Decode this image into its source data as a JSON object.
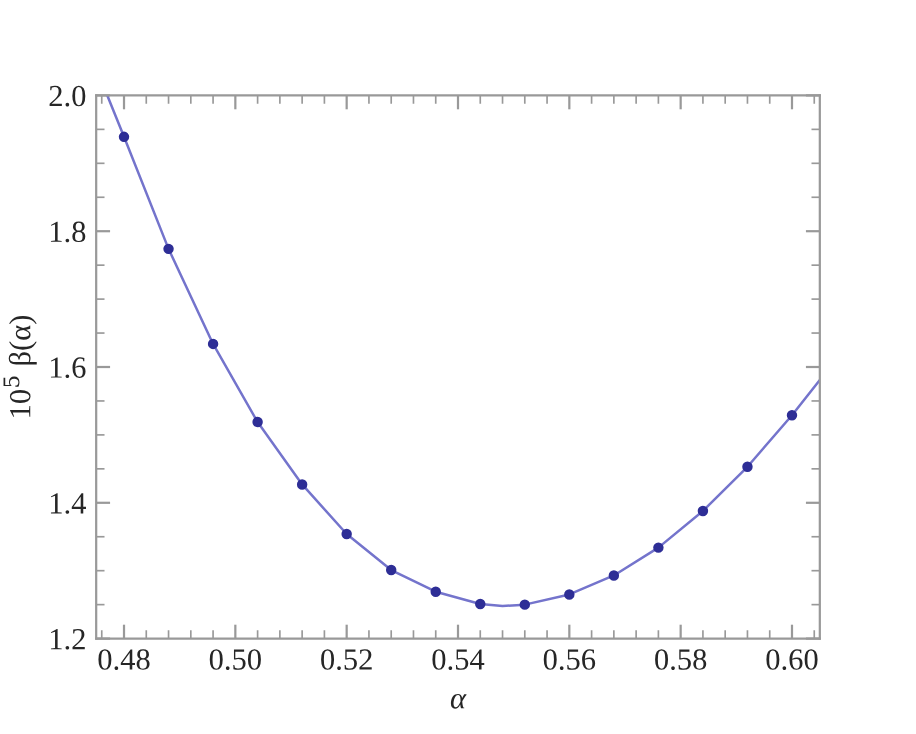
{
  "chart_data": {
    "type": "scatter",
    "xlabel": "α",
    "ylabel": "10$^{5}$ β(α)",
    "x": [
      0.48,
      0.488,
      0.496,
      0.504,
      0.512,
      0.52,
      0.528,
      0.536,
      0.544,
      0.552,
      0.56,
      0.568,
      0.576,
      0.584,
      0.592,
      0.6
    ],
    "series": [
      {
        "color": "#2e2e96",
        "marker": "circle",
        "values": [
          1.939,
          1.774,
          1.634,
          1.519,
          1.427,
          1.354,
          1.301,
          1.269,
          1.251,
          1.25,
          1.265,
          1.293,
          1.334,
          1.388,
          1.453,
          1.529
        ]
      },
      {
        "type": "line",
        "color": "#7474cc",
        "line_style": "solid",
        "x": [
          0.477,
          0.48,
          0.488,
          0.496,
          0.504,
          0.512,
          0.52,
          0.528,
          0.536,
          0.544,
          0.548,
          0.552,
          0.56,
          0.568,
          0.576,
          0.584,
          0.592,
          0.6,
          0.605
        ],
        "values": [
          2.0,
          1.939,
          1.774,
          1.634,
          1.519,
          1.427,
          1.354,
          1.301,
          1.269,
          1.251,
          1.248,
          1.25,
          1.265,
          1.293,
          1.334,
          1.388,
          1.453,
          1.529,
          1.581
        ]
      }
    ],
    "xlim": [
      0.475,
      0.605
    ],
    "ylim": [
      1.2,
      2.0
    ],
    "xticks": [
      {
        "value": 0.48,
        "label": "0.48"
      },
      {
        "value": 0.5,
        "label": "0.50"
      },
      {
        "value": 0.52,
        "label": "0.52"
      },
      {
        "value": 0.54,
        "label": "0.54"
      },
      {
        "value": 0.56,
        "label": "0.56"
      },
      {
        "value": 0.58,
        "label": "0.58"
      },
      {
        "value": 0.6,
        "label": "0.60"
      },
      {
        "value": 0.476,
        "label": null
      },
      {
        "value": 0.484,
        "label": null
      },
      {
        "value": 0.488,
        "label": null
      },
      {
        "value": 0.492,
        "label": null
      },
      {
        "value": 0.496,
        "label": null
      },
      {
        "value": 0.504,
        "label": null
      },
      {
        "value": 0.508,
        "label": null
      },
      {
        "value": 0.512,
        "label": null
      },
      {
        "value": 0.516,
        "label": null
      },
      {
        "value": 0.524,
        "label": null
      },
      {
        "value": 0.528,
        "label": null
      },
      {
        "value": 0.532,
        "label": null
      },
      {
        "value": 0.536,
        "label": null
      },
      {
        "value": 0.544,
        "label": null
      },
      {
        "value": 0.548,
        "label": null
      },
      {
        "value": 0.552,
        "label": null
      },
      {
        "value": 0.556,
        "label": null
      },
      {
        "value": 0.564,
        "label": null
      },
      {
        "value": 0.568,
        "label": null
      },
      {
        "value": 0.572,
        "label": null
      },
      {
        "value": 0.576,
        "label": null
      },
      {
        "value": 0.584,
        "label": null
      },
      {
        "value": 0.588,
        "label": null
      },
      {
        "value": 0.592,
        "label": null
      },
      {
        "value": 0.596,
        "label": null
      },
      {
        "value": 0.604,
        "label": null
      }
    ],
    "yticks": [
      {
        "value": 1.2,
        "label": "1.2"
      },
      {
        "value": 1.4,
        "label": "1.4"
      },
      {
        "value": 1.6,
        "label": "1.6"
      },
      {
        "value": 1.8,
        "label": "1.8"
      },
      {
        "value": 2.0,
        "label": "2.0"
      },
      {
        "value": 1.25,
        "label": null
      },
      {
        "value": 1.3,
        "label": null
      },
      {
        "value": 1.35,
        "label": null
      },
      {
        "value": 1.45,
        "label": null
      },
      {
        "value": 1.5,
        "label": null
      },
      {
        "value": 1.55,
        "label": null
      },
      {
        "value": 1.65,
        "label": null
      },
      {
        "value": 1.7,
        "label": null
      },
      {
        "value": 1.75,
        "label": null
      },
      {
        "value": 1.85,
        "label": null
      },
      {
        "value": 1.9,
        "label": null
      },
      {
        "value": 1.95,
        "label": null
      }
    ],
    "grid": false,
    "legend": false
  }
}
